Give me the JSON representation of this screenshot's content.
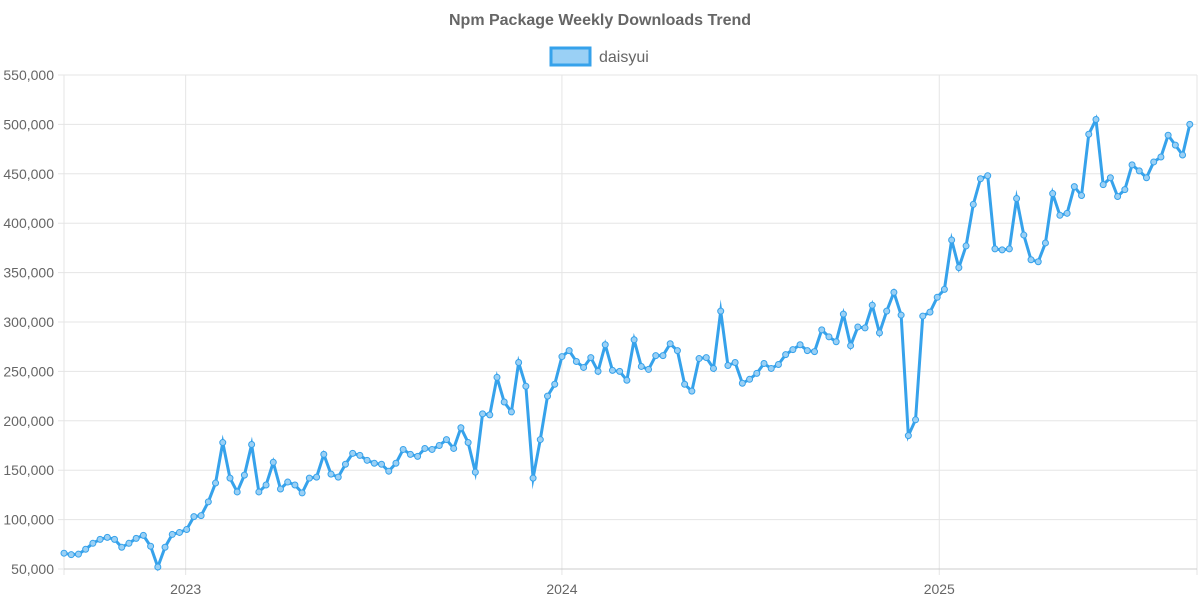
{
  "chart_data": {
    "type": "line",
    "title": "Npm Package Weekly Downloads Trend",
    "legend": {
      "position": "top",
      "entries": [
        "daisyui"
      ]
    },
    "xlabel": "",
    "ylabel": "",
    "ylim": [
      50000,
      550000
    ],
    "y_ticks": [
      50000,
      100000,
      150000,
      200000,
      250000,
      300000,
      350000,
      400000,
      450000,
      500000,
      550000
    ],
    "y_tick_labels": [
      "50,000",
      "100,000",
      "150,000",
      "200,000",
      "250,000",
      "300,000",
      "350,000",
      "400,000",
      "450,000",
      "500,000",
      "550,000"
    ],
    "x_range": [
      "2022-09-05",
      "2025-09-08"
    ],
    "x_ticks": [
      "2023-01-01",
      "2024-01-01",
      "2025-01-01"
    ],
    "x_tick_labels": [
      "2023",
      "2024",
      "2025"
    ],
    "grid": true,
    "series": [
      {
        "name": "daisyui",
        "color": "#36a2eb",
        "fill": "#9ad0f5",
        "start_date": "2022-09-05",
        "interval_days": 7,
        "values": [
          66000,
          64500,
          65000,
          70000,
          76000,
          80000,
          82000,
          80000,
          72000,
          76000,
          81000,
          84000,
          73000,
          52000,
          72000,
          85000,
          87000,
          90000,
          103000,
          104000,
          118000,
          137000,
          178000,
          142000,
          128000,
          145000,
          176000,
          128000,
          135000,
          158000,
          131000,
          138000,
          135000,
          127000,
          142000,
          143000,
          166000,
          146000,
          143000,
          156000,
          167000,
          165000,
          160000,
          157000,
          156000,
          149000,
          157000,
          171000,
          166000,
          164000,
          172000,
          171000,
          175000,
          181000,
          172000,
          193000,
          178000,
          148000,
          207000,
          206000,
          244000,
          219000,
          209000,
          259000,
          235000,
          142000,
          181000,
          225000,
          237000,
          265000,
          271000,
          260000,
          254000,
          264000,
          250000,
          277000,
          251000,
          250000,
          241000,
          282000,
          255000,
          252000,
          266000,
          266000,
          278000,
          271000,
          237000,
          230000,
          263000,
          264000,
          253000,
          311000,
          256000,
          259000,
          238000,
          242000,
          248000,
          258000,
          253000,
          257000,
          267000,
          272000,
          277000,
          271000,
          270000,
          292000,
          285000,
          280000,
          308000,
          276000,
          295000,
          294000,
          317000,
          289000,
          311000,
          330000,
          307000,
          185000,
          201000,
          306000,
          310000,
          325000,
          333000,
          383000,
          355000,
          377000,
          419000,
          445000,
          448000,
          374000,
          373000,
          374000,
          425000,
          388000,
          363000,
          361000,
          380000,
          430000,
          408000,
          410000,
          437000,
          428000,
          490000,
          505000,
          439000,
          446000,
          427000,
          434000,
          459000,
          453000,
          446000,
          462000,
          467000,
          489000,
          479000,
          469000,
          500000
        ]
      }
    ]
  }
}
